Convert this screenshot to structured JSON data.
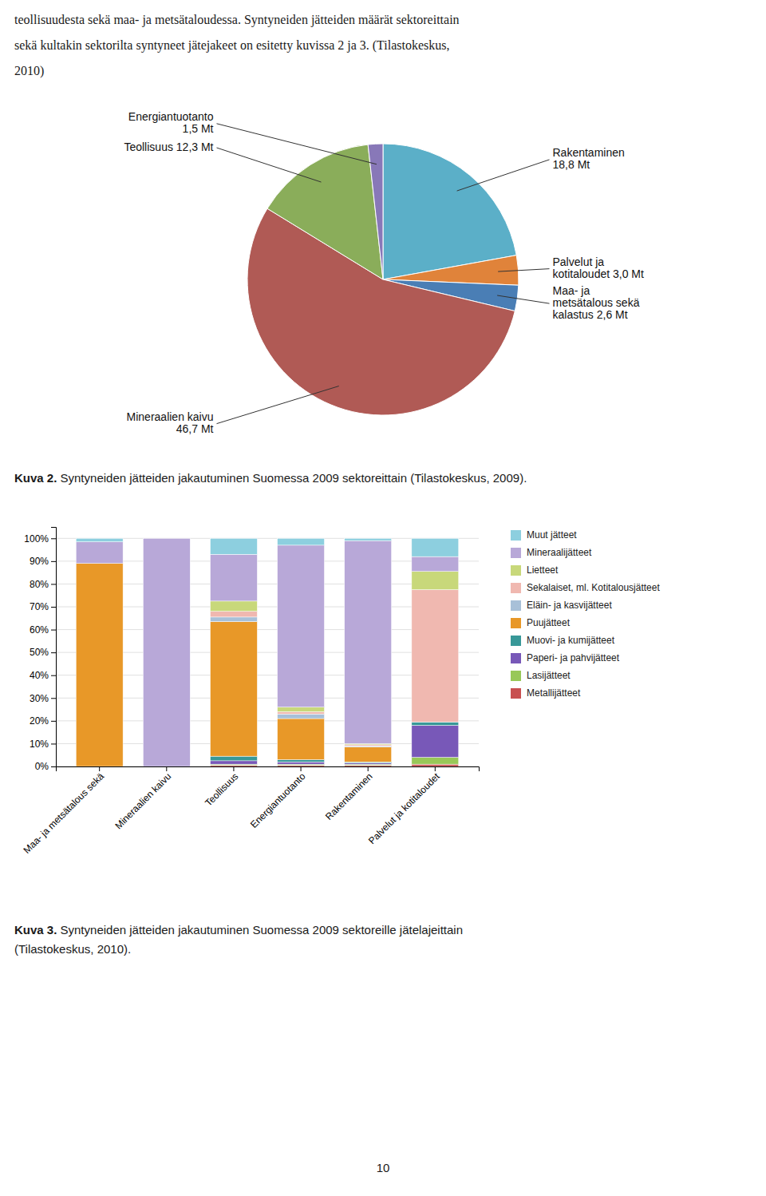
{
  "page_text": [
    "teollisuudesta sekä maa- ja metsätaloudessa. Syntyneiden jätteiden määrät sektoreittain",
    "sekä kultakin sektorilta syntyneet jätejakeet on esitetty kuvissa 2 ja 3. (Tilastokeskus,",
    "2010)"
  ],
  "chart_data": [
    {
      "type": "pie",
      "caption": {
        "bold": "Kuva 2.",
        "lines": [
          " Syntyneiden jätteiden jakautuminen Suomessa 2009 sektoreittain (Tilastokeskus, 2009)."
        ]
      },
      "values": [
        18.8,
        3.0,
        2.6,
        46.7,
        12.3,
        1.5
      ],
      "value_labels": [
        "Rakentaminen\n18,8 Mt",
        "Palvelut ja\nkotitaloudet 3,0 Mt",
        "Maa- ja\nmetsätalous sekä\nkalastus 2,6 Mt",
        "Mineraalien kaivu\n46,7 Mt",
        "Teollisuus 12,3 Mt",
        "Energiantuotanto\n1,5 Mt"
      ],
      "colors": [
        "#5bafc8",
        "#e0833a",
        "#4a7eb5",
        "#b05a55",
        "#8aad5a",
        "#8878b8"
      ],
      "data_labels": true
    },
    {
      "type": "bar",
      "stacked": true,
      "caption": {
        "bold": "Kuva 3.",
        "lines": [
          " Syntyneiden jätteiden jakautuminen Suomessa 2009 sektoreille jätelajeittain",
          "(Tilastokeskus, 2010)."
        ]
      },
      "categories": [
        "Maa- ja metsätalous sekä",
        "Mineraalien kaivu",
        "Teollisuus",
        "Energiantuotanto",
        "Rakentaminen",
        "Palvelut ja kotitaloudet"
      ],
      "series": [
        {
          "name": "Muut jätteet",
          "color": "#8dcfdf",
          "values": [
            1.5,
            0.0,
            7.0,
            3.0,
            1.0,
            8.0
          ]
        },
        {
          "name": "Mineraalijätteet",
          "color": "#b8a8d8",
          "values": [
            9.5,
            100.0,
            20.5,
            71.0,
            89.0,
            6.5
          ]
        },
        {
          "name": "Lietteet",
          "color": "#c8d87a",
          "values": [
            0.0,
            0.0,
            4.5,
            2.0,
            0.5,
            8.0
          ]
        },
        {
          "name": "Sekalaiset, ml. Kotitalousjätteet",
          "color": "#f0b8b0",
          "values": [
            0.0,
            0.0,
            2.5,
            1.0,
            0.5,
            58.0
          ]
        },
        {
          "name": "Eläin- ja kasvijätteet",
          "color": "#a8c0d8",
          "values": [
            0.0,
            0.0,
            2.0,
            2.0,
            0.5,
            0.0
          ]
        },
        {
          "name": "Puujätteet",
          "color": "#e89828",
          "values": [
            89.0,
            0.0,
            59.0,
            18.0,
            6.5,
            0.0
          ]
        },
        {
          "name": "Muovi- ja kumijätteet",
          "color": "#389898",
          "values": [
            0.0,
            0.0,
            2.0,
            1.0,
            0.5,
            1.5
          ]
        },
        {
          "name": "Paperi- ja pahvijätteet",
          "color": "#7858b8",
          "values": [
            0.0,
            0.0,
            1.5,
            1.0,
            0.5,
            14.0
          ]
        },
        {
          "name": "Lasijätteet",
          "color": "#98c858",
          "values": [
            0.0,
            0.0,
            0.5,
            0.5,
            0.5,
            3.0
          ]
        },
        {
          "name": "Metallijätteet",
          "color": "#c85050",
          "values": [
            0.0,
            0.0,
            0.5,
            0.5,
            0.5,
            1.0
          ]
        }
      ],
      "ylim": [
        0,
        105
      ],
      "yticks": [
        {
          "value": 0,
          "label": "0%"
        },
        {
          "value": 10,
          "label": "10%"
        },
        {
          "value": 20,
          "label": "20%"
        },
        {
          "value": 30,
          "label": "30%"
        },
        {
          "value": 40,
          "label": "40%"
        },
        {
          "value": 50,
          "label": "50%"
        },
        {
          "value": 60,
          "label": "60%"
        },
        {
          "value": 70,
          "label": "70%"
        },
        {
          "value": 80,
          "label": "80%"
        },
        {
          "value": 90,
          "label": "90%"
        },
        {
          "value": 100,
          "label": "100%"
        }
      ],
      "grid": true,
      "legend": "right"
    }
  ],
  "page_number": "10"
}
